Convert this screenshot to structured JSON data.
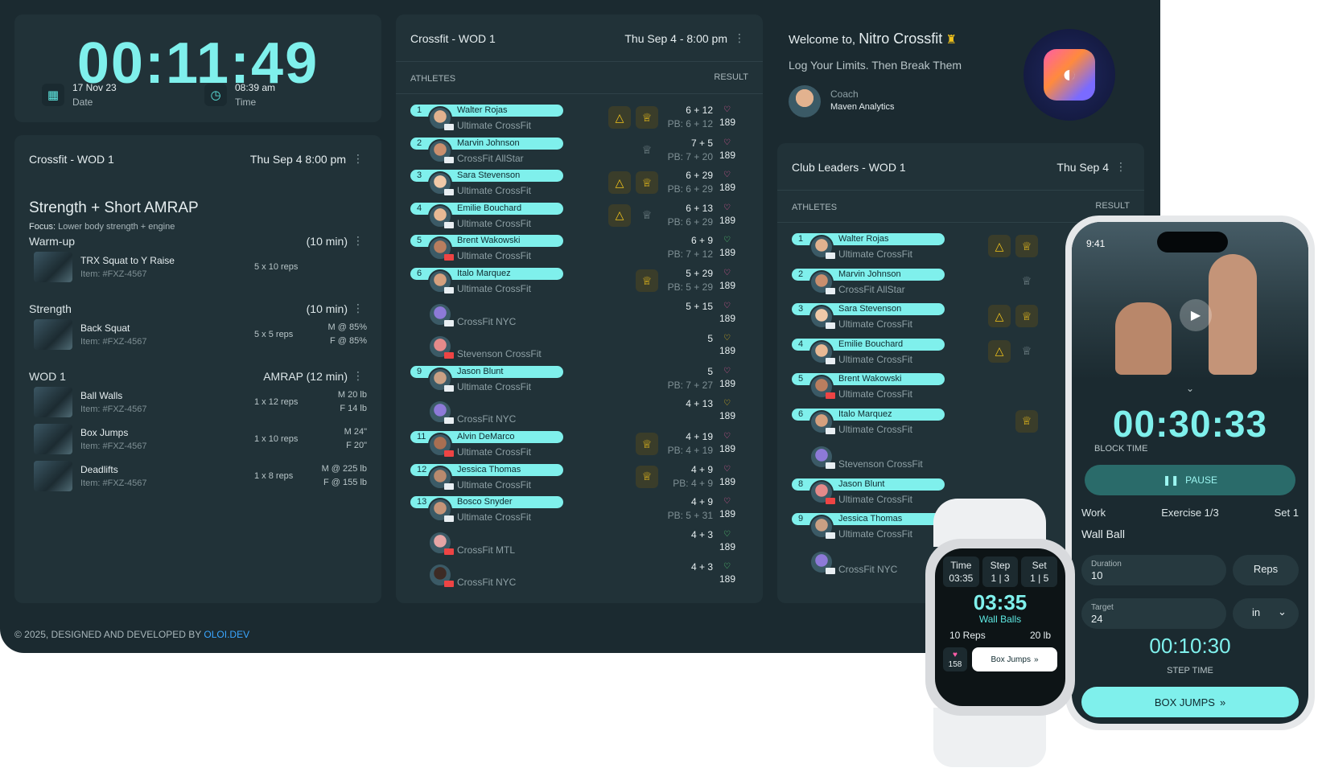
{
  "timer": {
    "time": "00:11:49",
    "date_value": "17 Nov 23",
    "date_label": "Date",
    "time_value": "08:39 am",
    "time_label": "Time"
  },
  "wod": {
    "title": "Crossfit - WOD 1",
    "date": "Thu Sep 4 8:00 pm",
    "program": "Strength + Short AMRAP",
    "focus_label": "Focus:",
    "focus_text": "Lower body strength + engine",
    "sections": [
      {
        "name": "Warm-up",
        "duration": "(10 min)",
        "exercises": [
          {
            "name": "TRX Squat to Y Raise",
            "item": "Item: #FXZ-4567",
            "reps": "5 x 10 reps",
            "load_m": "",
            "load_f": ""
          }
        ]
      },
      {
        "name": "Strength",
        "duration": "(10 min)",
        "exercises": [
          {
            "name": "Back Squat",
            "item": "Item: #FXZ-4567",
            "reps": "5 x 5 reps",
            "load_m": "M @ 85%",
            "load_f": "F @ 85%"
          }
        ]
      },
      {
        "name": "WOD 1",
        "duration": "AMRAP (12 min)",
        "exercises": [
          {
            "name": "Ball Walls",
            "item": "Item: #FXZ-4567",
            "reps": "1 x 12 reps",
            "load_m": "M 20 lb",
            "load_f": "F 14 lb"
          },
          {
            "name": "Box Jumps",
            "item": "Item: #FXZ-4567",
            "reps": "1 x 10 reps",
            "load_m": "M 24\"",
            "load_f": "F 20\""
          },
          {
            "name": "Deadlifts",
            "item": "Item: #FXZ-4567",
            "reps": "1 x 8 reps",
            "load_m": "M @ 225 lb",
            "load_f": "F @ 155 lb"
          }
        ]
      }
    ]
  },
  "board": {
    "title": "Crossfit - WOD 1",
    "date": "Thu Sep 4 - 8:00 pm",
    "col_athletes": "ATHLETES",
    "col_result": "RESULT",
    "rows": [
      {
        "rank": "1",
        "name": "Walter Rojas",
        "club": "Ultimate CrossFit",
        "score": "6 + 12",
        "pb": "PB: 6 + 12",
        "hr": "189",
        "hr_color": "#ff5da8",
        "warn": true,
        "medal": true
      },
      {
        "rank": "2",
        "name": "Marvin Johnson",
        "club": "CrossFit AllStar",
        "score": "7 + 5",
        "pb": "PB: 7 + 20",
        "hr": "189",
        "hr_color": "#ff5da8",
        "warn": false,
        "medal": "plain"
      },
      {
        "rank": "3",
        "name": "Sara Stevenson",
        "club": "Ultimate CrossFit",
        "score": "6 + 29",
        "pb": "PB: 6 + 29",
        "hr": "189",
        "hr_color": "#ff5da8",
        "warn": true,
        "medal": true
      },
      {
        "rank": "4",
        "name": "Emilie Bouchard",
        "club": "Ultimate CrossFit",
        "score": "6 + 13",
        "pb": "PB: 6 + 29",
        "hr": "189",
        "hr_color": "#ff5da8",
        "warn": true,
        "medal": "plain"
      },
      {
        "rank": "5",
        "name": "Brent Wakowski",
        "club": "Ultimate CrossFit",
        "score": "6 + 9",
        "pb": "PB: 7 + 12",
        "hr": "189",
        "hr_color": "#5ce07a",
        "warn": false,
        "medal": false
      },
      {
        "rank": "6",
        "name": "Italo Marquez",
        "club": "Ultimate CrossFit",
        "score": "5 + 29",
        "pb": "PB: 5 + 29",
        "hr": "189",
        "hr_color": "#ff5da8",
        "warn": false,
        "medal": true
      },
      {
        "rank": "",
        "name": "",
        "club": "CrossFit NYC",
        "score": "5 + 15",
        "pb": "",
        "hr": "189",
        "hr_color": "#ff5da8",
        "warn": false,
        "medal": false
      },
      {
        "rank": "",
        "name": "",
        "club": "Stevenson CrossFit",
        "score": "5",
        "pb": "",
        "hr": "189",
        "hr_color": "#f1c21b",
        "warn": false,
        "medal": false
      },
      {
        "rank": "9",
        "name": "Jason Blunt",
        "club": "Ultimate CrossFit",
        "score": "5",
        "pb": "PB: 7 + 27",
        "hr": "189",
        "hr_color": "#ff5da8",
        "warn": false,
        "medal": false
      },
      {
        "rank": "",
        "name": "",
        "club": "CrossFit NYC",
        "score": "4 + 13",
        "pb": "",
        "hr": "189",
        "hr_color": "#f1c21b",
        "warn": false,
        "medal": false
      },
      {
        "rank": "11",
        "name": "Alvin DeMarco",
        "club": "Ultimate CrossFit",
        "score": "4 + 19",
        "pb": "PB: 4 + 19",
        "hr": "189",
        "hr_color": "#ff5da8",
        "warn": false,
        "medal": true
      },
      {
        "rank": "12",
        "name": "Jessica Thomas",
        "club": "Ultimate CrossFit",
        "score": "4 + 9",
        "pb": "PB: 4 + 9",
        "hr": "189",
        "hr_color": "#ff5da8",
        "warn": false,
        "medal": true
      },
      {
        "rank": "13",
        "name": "Bosco Snyder",
        "club": "Ultimate CrossFit",
        "score": "4 + 9",
        "pb": "PB: 5 + 31",
        "hr": "189",
        "hr_color": "#ff5da8",
        "warn": false,
        "medal": false
      },
      {
        "rank": "",
        "name": "",
        "club": "CrossFit MTL",
        "score": "4 + 3",
        "pb": "",
        "hr": "189",
        "hr_color": "#5ce07a",
        "warn": false,
        "medal": false
      },
      {
        "rank": "",
        "name": "",
        "club": "CrossFit NYC",
        "score": "4 + 3",
        "pb": "",
        "hr": "189",
        "hr_color": "#5ce07a",
        "warn": false,
        "medal": false
      }
    ]
  },
  "welcome": {
    "prefix": "Welcome to,",
    "gym": "Nitro Crossfit",
    "tagline": "Log Your Limits. Then Break Them",
    "coach_label": "Coach",
    "coach_name": "Maven Analytics"
  },
  "leaders": {
    "title": "Club Leaders - WOD 1",
    "date": "Thu Sep 4",
    "col_athletes": "ATHLETES",
    "col_result": "RESULT",
    "rows": [
      {
        "rank": "1",
        "name": "Walter Rojas",
        "club": "Ultimate CrossFit",
        "warn": true,
        "medal": true
      },
      {
        "rank": "2",
        "name": "Marvin Johnson",
        "club": "CrossFit AllStar",
        "warn": false,
        "medal": "plain"
      },
      {
        "rank": "3",
        "name": "Sara Stevenson",
        "club": "Ultimate CrossFit",
        "warn": true,
        "medal": true
      },
      {
        "rank": "4",
        "name": "Emilie Bouchard",
        "club": "Ultimate CrossFit",
        "warn": true,
        "medal": "plain"
      },
      {
        "rank": "5",
        "name": "Brent Wakowski",
        "club": "Ultimate CrossFit",
        "warn": false,
        "medal": false
      },
      {
        "rank": "6",
        "name": "Italo Marquez",
        "club": "Ultimate CrossFit",
        "warn": false,
        "medal": true
      },
      {
        "rank": "",
        "name": "",
        "club": "Stevenson CrossFit",
        "warn": false,
        "medal": false
      },
      {
        "rank": "8",
        "name": "Jason Blunt",
        "club": "Ultimate CrossFit",
        "warn": false,
        "medal": false
      },
      {
        "rank": "9",
        "name": "Jessica Thomas",
        "club": "Ultimate CrossFit",
        "warn": false,
        "medal": false
      },
      {
        "rank": "",
        "name": "",
        "club": "CrossFit NYC",
        "warn": false,
        "medal": false
      }
    ]
  },
  "footer": {
    "text": "© 2025, DESIGNED AND DEVELOPED BY",
    "link": "OLOI.DEV"
  },
  "phone": {
    "status_time": "9:41",
    "block_time": "00:30:33",
    "block_label": "BLOCK TIME",
    "pause_label": "PAUSE",
    "work_label": "Work",
    "exercise_label": "Exercise 1/3",
    "set_label": "Set 1",
    "exercise_name": "Wall Ball",
    "duration_label": "Duration",
    "duration_value": "10",
    "reps_label": "Reps",
    "target_label": "Target",
    "target_value": "24",
    "unit_value": "in",
    "step_time": "00:10:30",
    "step_label": "STEP TIME",
    "next_label": "BOX JUMPS"
  },
  "watch": {
    "time_label": "Time",
    "time_value": "03:35",
    "step_label": "Step",
    "step_value": "1 | 3",
    "set_label": "Set",
    "set_value": "1 | 5",
    "main_time": "03:35",
    "exercise": "Wall Balls",
    "reps": "10 Reps",
    "weight": "20 lb",
    "hr": "158",
    "next_label": "Box Jumps"
  }
}
